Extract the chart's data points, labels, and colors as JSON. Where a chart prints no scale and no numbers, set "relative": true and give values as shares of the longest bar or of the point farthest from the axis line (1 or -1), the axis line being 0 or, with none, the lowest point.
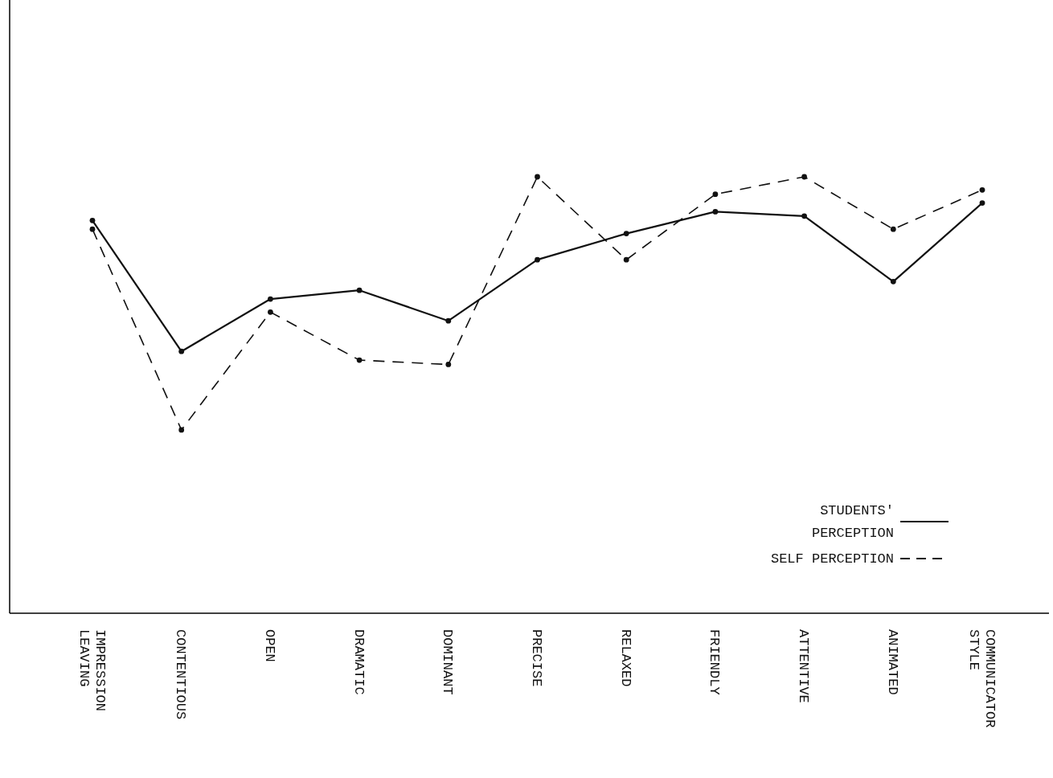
{
  "chart_data": {
    "type": "line",
    "relative": true,
    "categories": [
      "IMPRESSION LEAVING",
      "CONTENTIOUS",
      "OPEN",
      "DRAMATIC",
      "DOMINANT",
      "PRECISE",
      "RELAXED",
      "FRIENDLY",
      "ATTENTIVE",
      "ANIMATED",
      "COMMUNICATOR STYLE"
    ],
    "series": [
      {
        "name": "STUDENTS' PERCEPTION",
        "color": "#111111",
        "line_style": "solid",
        "values": [
          0.9,
          0.6,
          0.72,
          0.74,
          0.67,
          0.81,
          0.87,
          0.92,
          0.91,
          0.76,
          0.94
        ]
      },
      {
        "name": "SELF PERCEPTION",
        "color": "#111111",
        "line_style": "dashed",
        "values": [
          0.88,
          0.42,
          0.69,
          0.58,
          0.57,
          1.0,
          0.81,
          0.96,
          1.0,
          0.88,
          0.97
        ]
      }
    ],
    "marker": "circle",
    "legend": "bottom right",
    "grid": false
  }
}
